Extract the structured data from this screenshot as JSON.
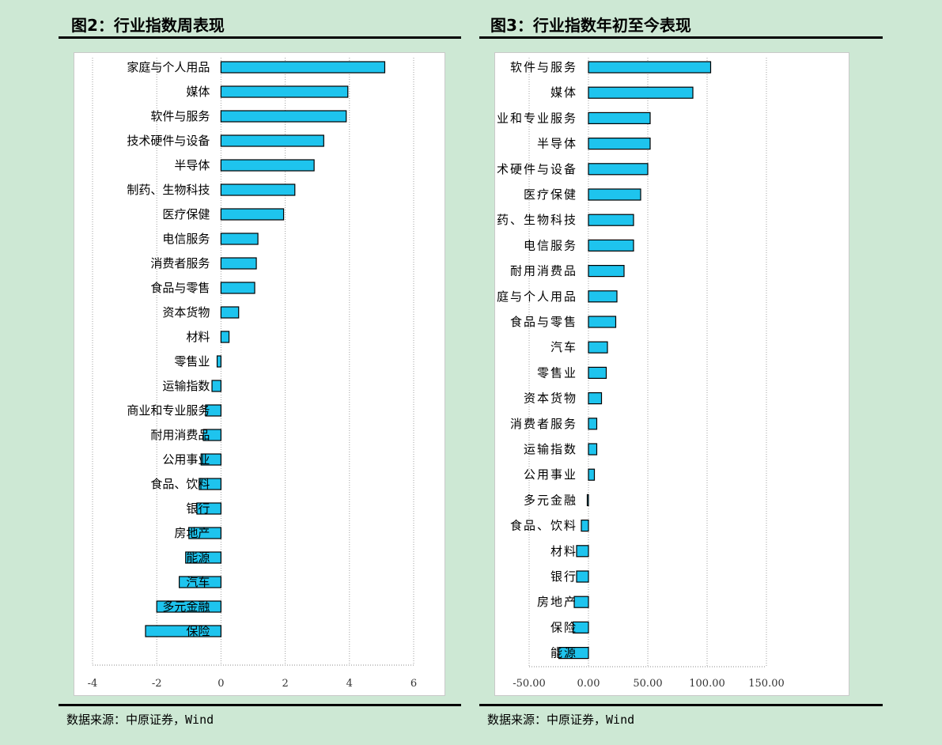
{
  "panels": [
    {
      "title": "图2：行业指数周表现",
      "source": "数据来源：中原证券，Wind",
      "chart_data": {
        "type": "bar",
        "orientation": "horizontal",
        "categories": [
          "家庭与个人用品",
          "媒体",
          "软件与服务",
          "技术硬件与设备",
          "半导体",
          "制药、生物科技",
          "医疗保健",
          "电信服务",
          "消费者服务",
          "食品与零售",
          "资本货物",
          "材料",
          "零售业",
          "运输指数",
          "商业和专业服务",
          "耐用消费品",
          "公用事业",
          "食品、饮料",
          "银行",
          "房地产",
          "能源",
          "汽车",
          "多元金融",
          "保险"
        ],
        "values": [
          5.1,
          3.95,
          3.9,
          3.2,
          2.9,
          2.3,
          1.95,
          1.15,
          1.1,
          1.05,
          0.55,
          0.25,
          -0.12,
          -0.28,
          -0.48,
          -0.55,
          -0.62,
          -0.68,
          -0.75,
          -1.0,
          -1.1,
          -1.3,
          -2.0,
          -2.35
        ],
        "xlim": [
          -4,
          6
        ],
        "xticks": [
          "-4",
          "-2",
          "0",
          "2",
          "4",
          "6"
        ],
        "xtick_values": [
          -4,
          -2,
          0,
          2,
          4,
          6
        ],
        "grid": true,
        "bar_color": "#1ec4ee"
      }
    },
    {
      "title": "图3：行业指数年初至今表现",
      "source": "数据来源：中原证券，Wind",
      "chart_data": {
        "type": "bar",
        "orientation": "horizontal",
        "categories": [
          "软件与服务",
          "媒体",
          "商业和专业服务",
          "半导体",
          "技术硬件与设备",
          "医疗保健",
          "制药、生物科技",
          "电信服务",
          "耐用消费品",
          "家庭与个人用品",
          "食品与零售",
          "汽车",
          "零售业",
          "资本货物",
          "消费者服务",
          "运输指数",
          "公用事业",
          "多元金融",
          "食品、饮料",
          "材料",
          "银行",
          "房地产",
          "保险",
          "能源"
        ],
        "values": [
          103,
          88,
          52,
          52,
          50,
          44,
          38,
          38,
          30,
          24,
          23,
          16,
          15,
          11,
          7,
          7,
          5,
          -1,
          -6,
          -10,
          -10,
          -12,
          -13,
          -25
        ],
        "xlim": [
          -50,
          150
        ],
        "xticks": [
          "-50.00",
          "0.00",
          "50.00",
          "100.00",
          "150.00"
        ],
        "xtick_values": [
          -50,
          0,
          50,
          100,
          150
        ],
        "grid": true,
        "bar_color": "#1ec4ee"
      }
    }
  ]
}
